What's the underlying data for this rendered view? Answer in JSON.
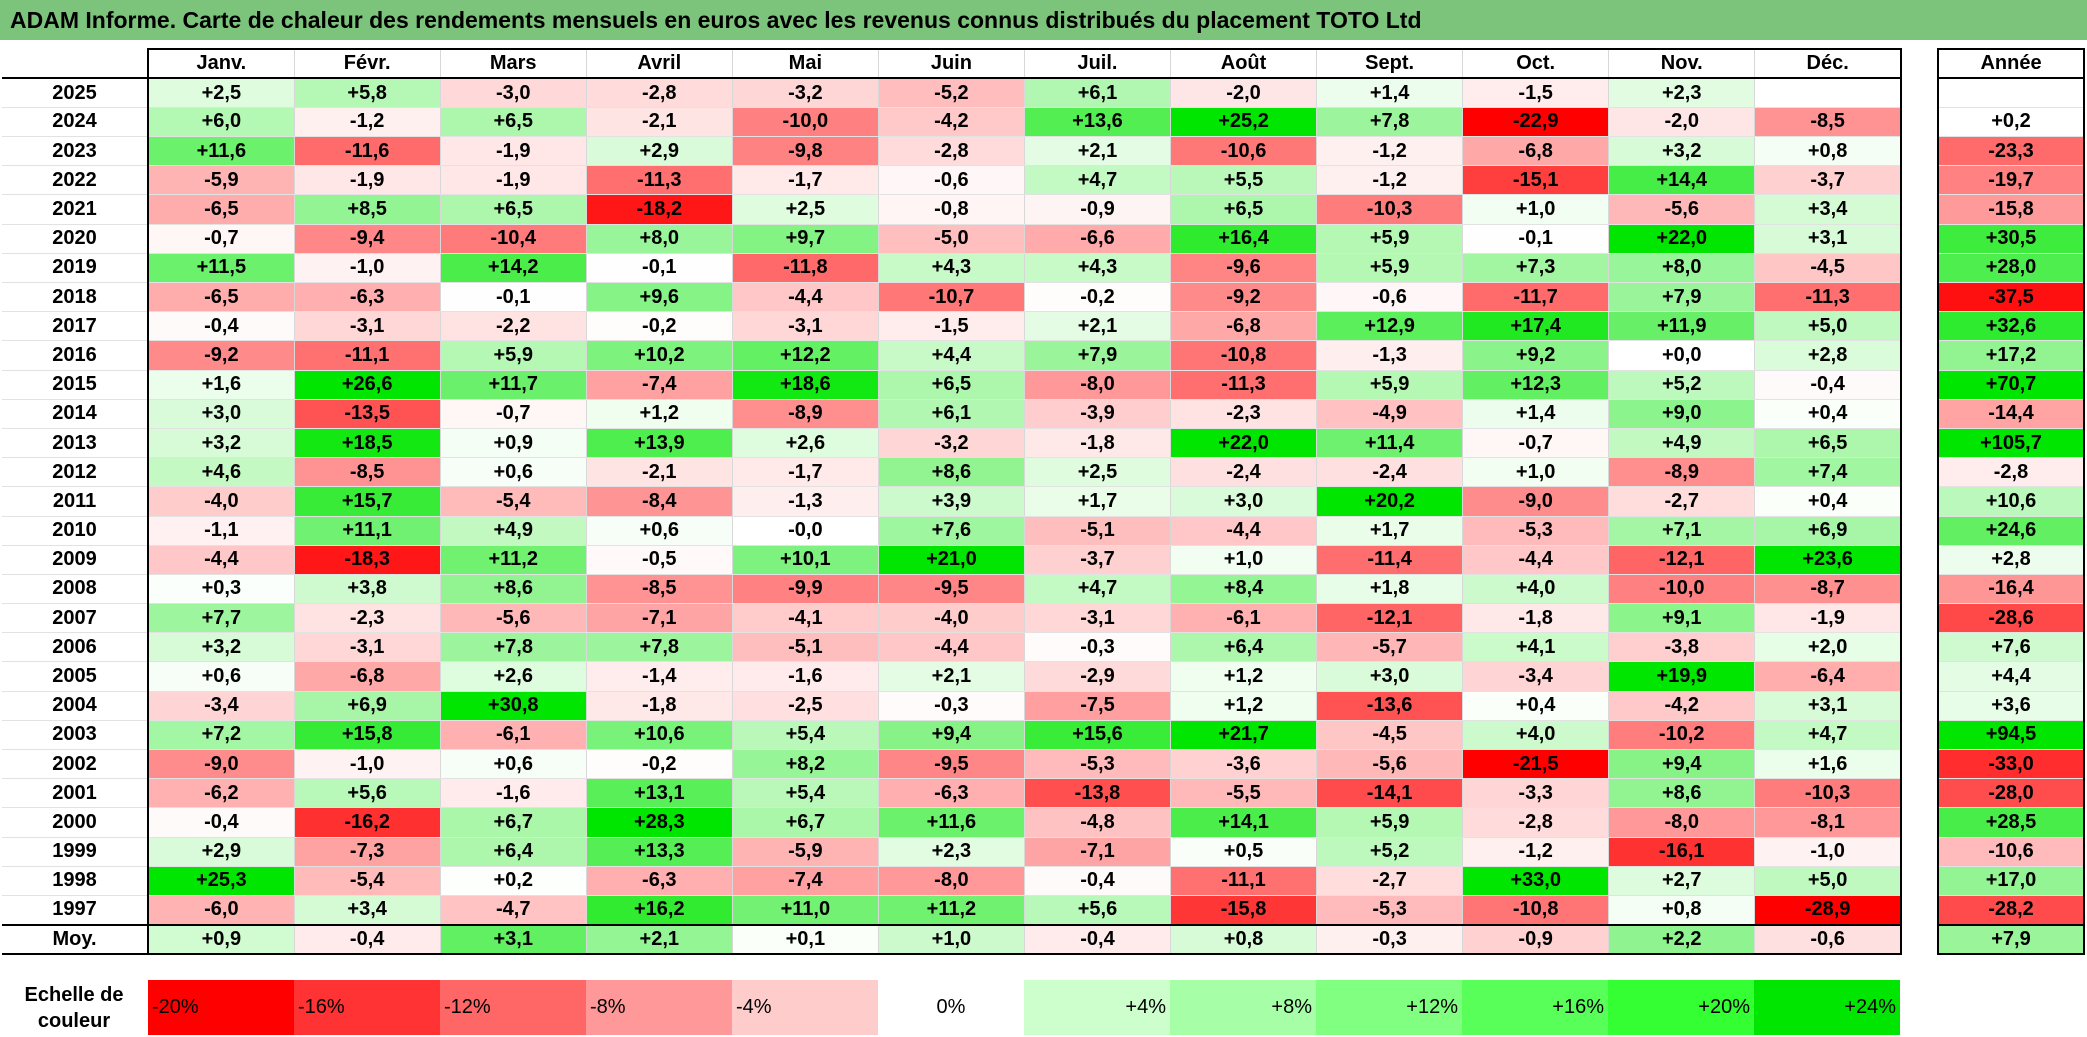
{
  "title": "ADAM Informe. Carte de chaleur des rendements mensuels en euros avec les revenus connus distribués du placement TOTO Ltd",
  "chart_data": {
    "type": "heatmap",
    "columns": [
      "Janv.",
      "Févr.",
      "Mars",
      "Avril",
      "Mai",
      "Juin",
      "Juil.",
      "Août",
      "Sept.",
      "Oct.",
      "Nov.",
      "Déc."
    ],
    "annual_header": "Année",
    "rows": [
      {
        "year": "2025",
        "values": [
          "+2,5",
          "+5,8",
          "-3,0",
          "-2,8",
          "-3,2",
          "-5,2",
          "+6,1",
          "-2,0",
          "+1,4",
          "-1,5",
          "+2,3",
          ""
        ],
        "annual": ""
      },
      {
        "year": "2024",
        "values": [
          "+6,0",
          "-1,2",
          "+6,5",
          "-2,1",
          "-10,0",
          "-4,2",
          "+13,6",
          "+25,2",
          "+7,8",
          "-22,9",
          "-2,0",
          "-8,5"
        ],
        "annual": "+0,2"
      },
      {
        "year": "2023",
        "values": [
          "+11,6",
          "-11,6",
          "-1,9",
          "+2,9",
          "-9,8",
          "-2,8",
          "+2,1",
          "-10,6",
          "-1,2",
          "-6,8",
          "+3,2",
          "+0,8"
        ],
        "annual": "-23,3"
      },
      {
        "year": "2022",
        "values": [
          "-5,9",
          "-1,9",
          "-1,9",
          "-11,3",
          "-1,7",
          "-0,6",
          "+4,7",
          "+5,5",
          "-1,2",
          "-15,1",
          "+14,4",
          "-3,7"
        ],
        "annual": "-19,7"
      },
      {
        "year": "2021",
        "values": [
          "-6,5",
          "+8,5",
          "+6,5",
          "-18,2",
          "+2,5",
          "-0,8",
          "-0,9",
          "+6,5",
          "-10,3",
          "+1,0",
          "-5,6",
          "+3,4"
        ],
        "annual": "-15,8"
      },
      {
        "year": "2020",
        "values": [
          "-0,7",
          "-9,4",
          "-10,4",
          "+8,0",
          "+9,7",
          "-5,0",
          "-6,6",
          "+16,4",
          "+5,9",
          "-0,1",
          "+22,0",
          "+3,1"
        ],
        "annual": "+30,5"
      },
      {
        "year": "2019",
        "values": [
          "+11,5",
          "-1,0",
          "+14,2",
          "-0,1",
          "-11,8",
          "+4,3",
          "+4,3",
          "-9,6",
          "+5,9",
          "+7,3",
          "+8,0",
          "-4,5"
        ],
        "annual": "+28,0"
      },
      {
        "year": "2018",
        "values": [
          "-6,5",
          "-6,3",
          "-0,1",
          "+9,6",
          "-4,4",
          "-10,7",
          "-0,2",
          "-9,2",
          "-0,6",
          "-11,7",
          "+7,9",
          "-11,3"
        ],
        "annual": "-37,5"
      },
      {
        "year": "2017",
        "values": [
          "-0,4",
          "-3,1",
          "-2,2",
          "-0,2",
          "-3,1",
          "-1,5",
          "+2,1",
          "-6,8",
          "+12,9",
          "+17,4",
          "+11,9",
          "+5,0"
        ],
        "annual": "+32,6"
      },
      {
        "year": "2016",
        "values": [
          "-9,2",
          "-11,1",
          "+5,9",
          "+10,2",
          "+12,2",
          "+4,4",
          "+7,9",
          "-10,8",
          "-1,3",
          "+9,2",
          "+0,0",
          "+2,8"
        ],
        "annual": "+17,2"
      },
      {
        "year": "2015",
        "values": [
          "+1,6",
          "+26,6",
          "+11,7",
          "-7,4",
          "+18,6",
          "+6,5",
          "-8,0",
          "-11,3",
          "+5,9",
          "+12,3",
          "+5,2",
          "-0,4"
        ],
        "annual": "+70,7"
      },
      {
        "year": "2014",
        "values": [
          "+3,0",
          "-13,5",
          "-0,7",
          "+1,2",
          "-8,9",
          "+6,1",
          "-3,9",
          "-2,3",
          "-4,9",
          "+1,4",
          "+9,0",
          "+0,4"
        ],
        "annual": "-14,4"
      },
      {
        "year": "2013",
        "values": [
          "+3,2",
          "+18,5",
          "+0,9",
          "+13,9",
          "+2,6",
          "-3,2",
          "-1,8",
          "+22,0",
          "+11,4",
          "-0,7",
          "+4,9",
          "+6,5"
        ],
        "annual": "+105,7"
      },
      {
        "year": "2012",
        "values": [
          "+4,6",
          "-8,5",
          "+0,6",
          "-2,1",
          "-1,7",
          "+8,6",
          "+2,5",
          "-2,4",
          "-2,4",
          "+1,0",
          "-8,9",
          "+7,4"
        ],
        "annual": "-2,8"
      },
      {
        "year": "2011",
        "values": [
          "-4,0",
          "+15,7",
          "-5,4",
          "-8,4",
          "-1,3",
          "+3,9",
          "+1,7",
          "+3,0",
          "+20,2",
          "-9,0",
          "-2,7",
          "+0,4"
        ],
        "annual": "+10,6"
      },
      {
        "year": "2010",
        "values": [
          "-1,1",
          "+11,1",
          "+4,9",
          "+0,6",
          "-0,0",
          "+7,6",
          "-5,1",
          "-4,4",
          "+1,7",
          "-5,3",
          "+7,1",
          "+6,9"
        ],
        "annual": "+24,6"
      },
      {
        "year": "2009",
        "values": [
          "-4,4",
          "-18,3",
          "+11,2",
          "-0,5",
          "+10,1",
          "+21,0",
          "-3,7",
          "+1,0",
          "-11,4",
          "-4,4",
          "-12,1",
          "+23,6"
        ],
        "annual": "+2,8"
      },
      {
        "year": "2008",
        "values": [
          "+0,3",
          "+3,8",
          "+8,6",
          "-8,5",
          "-9,9",
          "-9,5",
          "+4,7",
          "+8,4",
          "+1,8",
          "+4,0",
          "-10,0",
          "-8,7"
        ],
        "annual": "-16,4"
      },
      {
        "year": "2007",
        "values": [
          "+7,7",
          "-2,3",
          "-5,6",
          "-7,1",
          "-4,1",
          "-4,0",
          "-3,1",
          "-6,1",
          "-12,1",
          "-1,8",
          "+9,1",
          "-1,9"
        ],
        "annual": "-28,6"
      },
      {
        "year": "2006",
        "values": [
          "+3,2",
          "-3,1",
          "+7,8",
          "+7,8",
          "-5,1",
          "-4,4",
          "-0,3",
          "+6,4",
          "-5,7",
          "+4,1",
          "-3,8",
          "+2,0"
        ],
        "annual": "+7,6"
      },
      {
        "year": "2005",
        "values": [
          "+0,6",
          "-6,8",
          "+2,6",
          "-1,4",
          "-1,6",
          "+2,1",
          "-2,9",
          "+1,2",
          "+3,0",
          "-3,4",
          "+19,9",
          "-6,4"
        ],
        "annual": "+4,4"
      },
      {
        "year": "2004",
        "values": [
          "-3,4",
          "+6,9",
          "+30,8",
          "-1,8",
          "-2,5",
          "-0,3",
          "-7,5",
          "+1,2",
          "-13,6",
          "+0,4",
          "-4,2",
          "+3,1"
        ],
        "annual": "+3,6"
      },
      {
        "year": "2003",
        "values": [
          "+7,2",
          "+15,8",
          "-6,1",
          "+10,6",
          "+5,4",
          "+9,4",
          "+15,6",
          "+21,7",
          "-4,5",
          "+4,0",
          "-10,2",
          "+4,7"
        ],
        "annual": "+94,5"
      },
      {
        "year": "2002",
        "values": [
          "-9,0",
          "-1,0",
          "+0,6",
          "-0,2",
          "+8,2",
          "-9,5",
          "-5,3",
          "-3,6",
          "-5,6",
          "-21,5",
          "+9,4",
          "+1,6"
        ],
        "annual": "-33,0"
      },
      {
        "year": "2001",
        "values": [
          "-6,2",
          "+5,6",
          "-1,6",
          "+13,1",
          "+5,4",
          "-6,3",
          "-13,8",
          "-5,5",
          "-14,1",
          "-3,3",
          "+8,6",
          "-10,3"
        ],
        "annual": "-28,0"
      },
      {
        "year": "2000",
        "values": [
          "-0,4",
          "-16,2",
          "+6,7",
          "+28,3",
          "+6,7",
          "+11,6",
          "-4,8",
          "+14,1",
          "+5,9",
          "-2,8",
          "-8,0",
          "-8,1"
        ],
        "annual": "+28,5"
      },
      {
        "year": "1999",
        "values": [
          "+2,9",
          "-7,3",
          "+6,4",
          "+13,3",
          "-5,9",
          "+2,3",
          "-7,1",
          "+0,5",
          "+5,2",
          "-1,2",
          "-16,1",
          "-1,0"
        ],
        "annual": "-10,6"
      },
      {
        "year": "1998",
        "values": [
          "+25,3",
          "-5,4",
          "+0,2",
          "-6,3",
          "-7,4",
          "-8,0",
          "-0,4",
          "-11,1",
          "-2,7",
          "+33,0",
          "+2,7",
          "+5,0"
        ],
        "annual": "+17,0"
      },
      {
        "year": "1997",
        "values": [
          "-6,0",
          "+3,4",
          "-4,7",
          "+16,2",
          "+11,0",
          "+11,2",
          "+5,6",
          "-15,8",
          "-5,3",
          "-10,8",
          "+0,8",
          "-28,9"
        ],
        "annual": "-28,2"
      }
    ],
    "average": {
      "label": "Moy.",
      "values": [
        "+0,9",
        "-0,4",
        "+3,1",
        "+2,1",
        "+0,1",
        "+1,0",
        "-0,4",
        "+0,8",
        "-0,3",
        "-0,9",
        "+2,2",
        "-0,6"
      ],
      "annual": "+7,9"
    },
    "scale": {
      "label_line1": "Echelle de",
      "label_line2": "couleur",
      "steps": [
        {
          "label": "-20%",
          "color": "#ff0000"
        },
        {
          "label": "-16%",
          "color": "#ff3333"
        },
        {
          "label": "-12%",
          "color": "#ff6666"
        },
        {
          "label": "-8%",
          "color": "#ff9999"
        },
        {
          "label": "-4%",
          "color": "#ffcccc"
        },
        {
          "label": "0%",
          "color": "#ffffff"
        },
        {
          "label": "+4%",
          "color": "#ccffcc"
        },
        {
          "label": "+8%",
          "color": "#a6ffa6"
        },
        {
          "label": "+12%",
          "color": "#80ff80"
        },
        {
          "label": "+16%",
          "color": "#59ff59"
        },
        {
          "label": "+20%",
          "color": "#33ff33"
        },
        {
          "label": "+24%",
          "color": "#00e600"
        }
      ]
    }
  }
}
